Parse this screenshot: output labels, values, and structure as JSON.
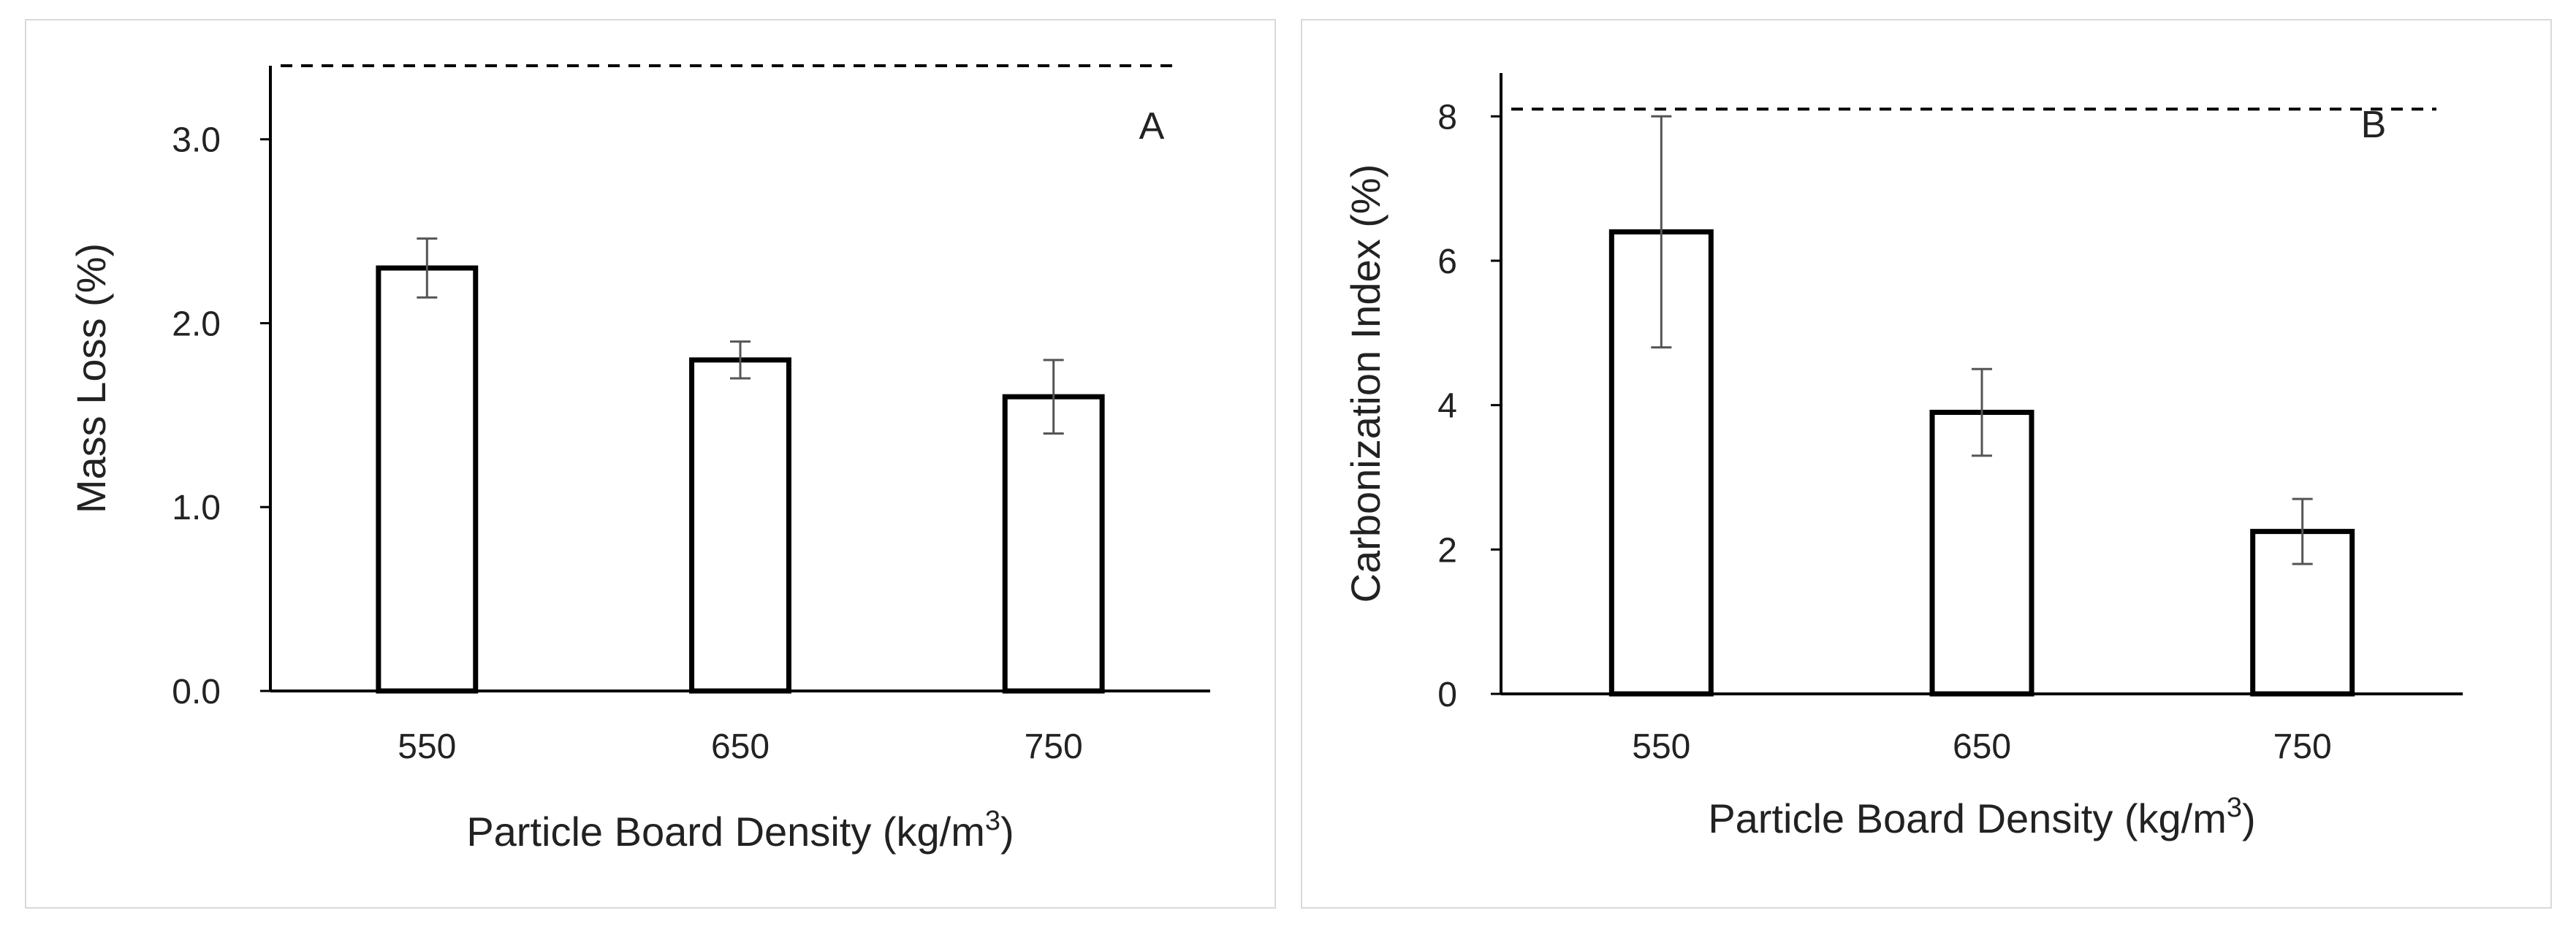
{
  "chart_data": [
    {
      "type": "bar",
      "panel_label": "A",
      "categories": [
        "550",
        "650",
        "750"
      ],
      "values": [
        2.3,
        1.8,
        1.6
      ],
      "error": [
        0.16,
        0.1,
        0.2
      ],
      "reference_line": 3.4,
      "reference_style": "dashed",
      "xlabel": "Particle Board Density (kg/m",
      "xlabel_sup": "3",
      "xlabel_end": ")",
      "ylabel": "Mass Loss (%)",
      "ylim": [
        0,
        3.4
      ],
      "yticks": [
        0,
        1,
        2,
        3
      ],
      "ytick_labels": [
        "0.0",
        "1.0",
        "2.0",
        "3.0"
      ],
      "grid": false,
      "bar_fill": "#ffffff",
      "bar_stroke": "#000000",
      "error_color": "#555555"
    },
    {
      "type": "bar",
      "panel_label": "B",
      "categories": [
        "550",
        "650",
        "750"
      ],
      "values": [
        6.4,
        3.9,
        2.25
      ],
      "error": [
        1.6,
        0.6,
        0.45
      ],
      "reference_line": 8.1,
      "reference_style": "dashed",
      "xlabel": "Particle Board Density (kg/m",
      "xlabel_sup": "3",
      "xlabel_end": ")",
      "ylabel": "Carbonization Index (%)",
      "ylim": [
        0,
        8.6
      ],
      "yticks": [
        0,
        2,
        4,
        6,
        8
      ],
      "ytick_labels": [
        "0",
        "2",
        "4",
        "6",
        "8"
      ],
      "grid": false,
      "bar_fill": "#ffffff",
      "bar_stroke": "#000000",
      "error_color": "#555555"
    }
  ]
}
